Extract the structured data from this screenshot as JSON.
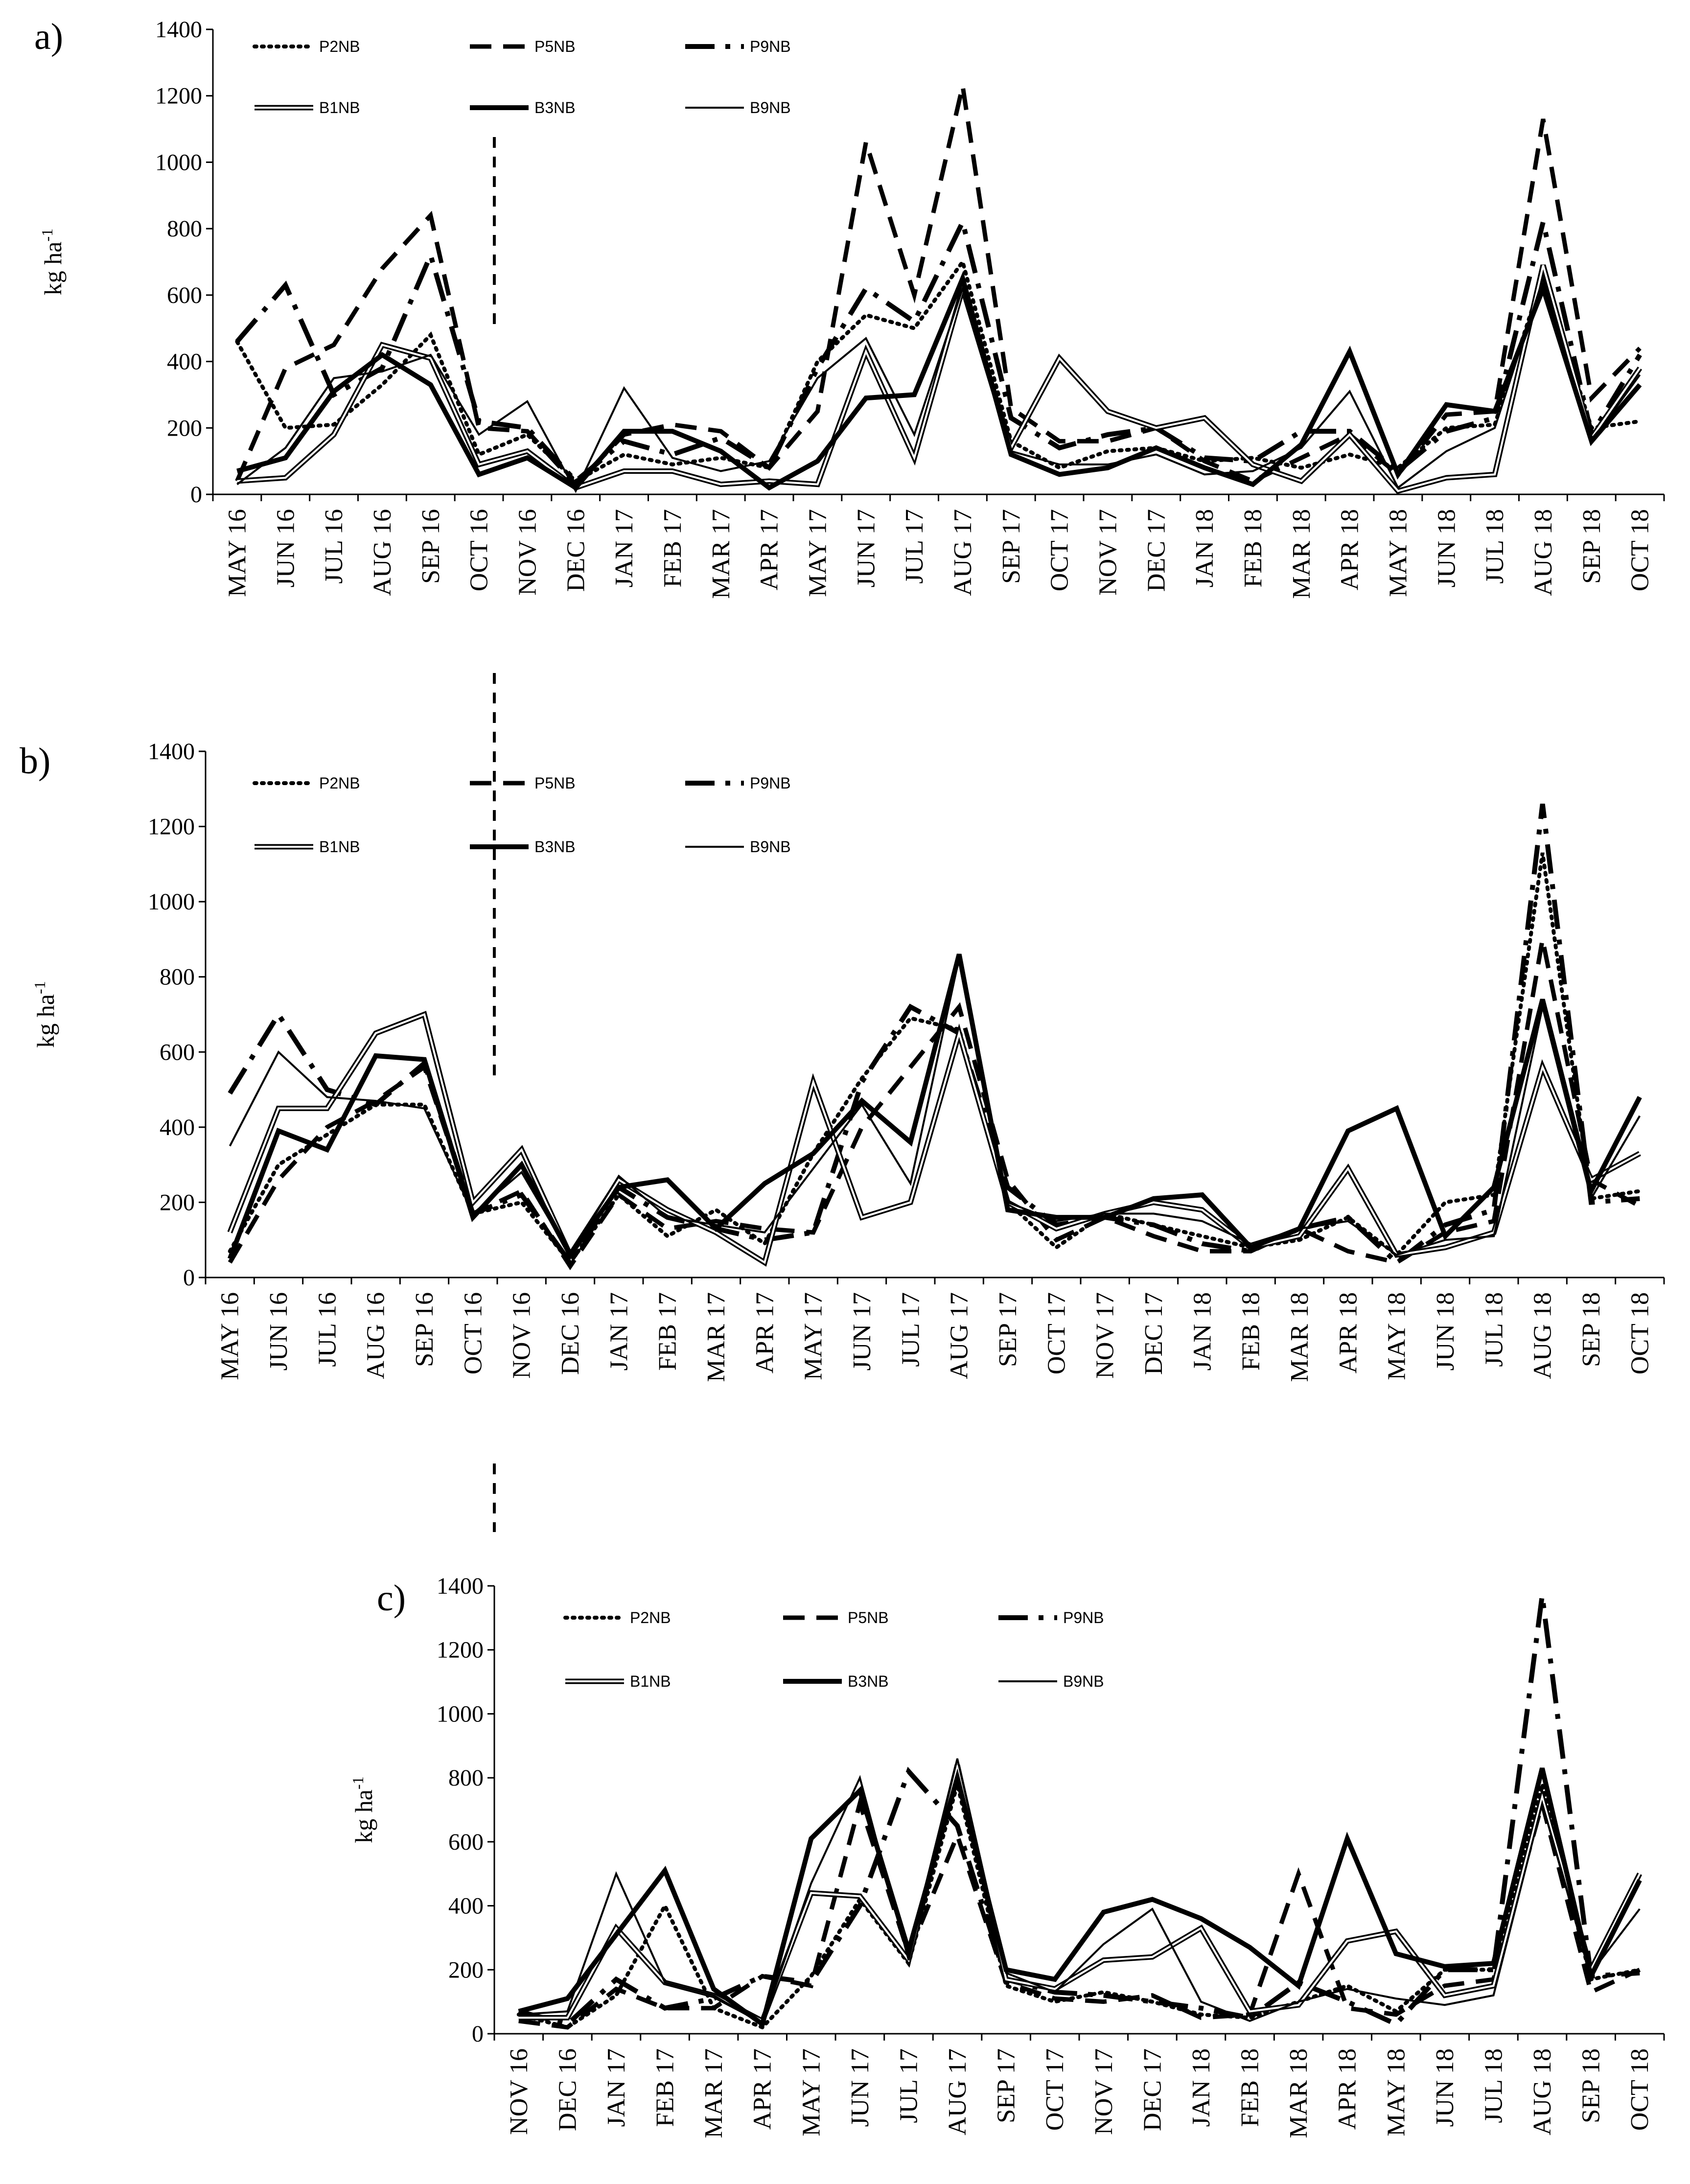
{
  "chart_data": [
    {
      "panel": "a)",
      "type": "line",
      "ylabel": "kg ha",
      "ylabel_sup": "-1",
      "ylim": [
        0,
        1400
      ],
      "yticks": [
        0,
        200,
        400,
        600,
        800,
        1000,
        1200,
        1400
      ],
      "categories": [
        "MAY 16",
        "JUN 16",
        "JUL 16",
        "AUG 16",
        "SEP 16",
        "OCT 16",
        "NOV 16",
        "DEC 16",
        "JAN 17",
        "FEB 17",
        "MAR 17",
        "APR 17",
        "MAY 17",
        "JUN 17",
        "JUL 17",
        "AUG 17",
        "SEP 17",
        "OCT 17",
        "NOV 17",
        "DEC 17",
        "JAN 18",
        "FEB 18",
        "MAR 18",
        "APR 18",
        "MAY 18",
        "JUN 18",
        "JUL 18",
        "AUG 18",
        "SEP 18",
        "OCT 18"
      ],
      "series": [
        {
          "name": "P2NB",
          "style": "dotted",
          "values": [
            460,
            200,
            210,
            330,
            480,
            120,
            180,
            40,
            120,
            90,
            110,
            80,
            400,
            540,
            500,
            700,
            160,
            80,
            130,
            140,
            100,
            110,
            80,
            120,
            80,
            200,
            210,
            660,
            200,
            220
          ]
        },
        {
          "name": "P5NB",
          "style": "dashed",
          "values": [
            40,
            380,
            450,
            680,
            840,
            200,
            190,
            30,
            180,
            210,
            190,
            80,
            250,
            1060,
            600,
            1230,
            260,
            160,
            160,
            200,
            100,
            40,
            110,
            180,
            60,
            240,
            250,
            1130,
            290,
            440
          ]
        },
        {
          "name": "P9NB",
          "style": "dashdot",
          "values": [
            460,
            630,
            300,
            380,
            720,
            220,
            200,
            40,
            160,
            120,
            170,
            80,
            380,
            620,
            520,
            820,
            230,
            140,
            180,
            200,
            110,
            100,
            190,
            190,
            70,
            190,
            230,
            820,
            180,
            420
          ]
        },
        {
          "name": "B1NB",
          "style": "double",
          "values": [
            40,
            50,
            180,
            450,
            410,
            90,
            130,
            20,
            70,
            70,
            30,
            40,
            30,
            430,
            110,
            620,
            140,
            410,
            250,
            200,
            230,
            90,
            40,
            180,
            10,
            50,
            60,
            690,
            170,
            380
          ]
        },
        {
          "name": "B3NB",
          "style": "thick",
          "values": [
            70,
            110,
            310,
            420,
            330,
            60,
            110,
            20,
            190,
            190,
            130,
            20,
            100,
            290,
            300,
            650,
            120,
            60,
            80,
            140,
            80,
            30,
            150,
            430,
            60,
            270,
            250,
            620,
            160,
            330
          ]
        },
        {
          "name": "B9NB",
          "style": "thin",
          "values": [
            30,
            140,
            350,
            370,
            420,
            180,
            280,
            10,
            320,
            110,
            70,
            100,
            350,
            470,
            180,
            620,
            130,
            90,
            90,
            120,
            60,
            70,
            140,
            310,
            20,
            130,
            200,
            650,
            160,
            360
          ]
        }
      ]
    },
    {
      "panel": "b)",
      "type": "line",
      "ylabel": "kg ha",
      "ylabel_sup": "-1",
      "ylim": [
        0,
        1400
      ],
      "yticks": [
        0,
        200,
        400,
        600,
        800,
        1000,
        1200,
        1400
      ],
      "categories": [
        "MAY 16",
        "JUN 16",
        "JUL 16",
        "AUG 16",
        "SEP 16",
        "OCT 16",
        "NOV 16",
        "DEC 16",
        "JAN 17",
        "FEB 17",
        "MAR 17",
        "APR 17",
        "MAY 17",
        "JUN 17",
        "JUL 17",
        "AUG 17",
        "SEP 17",
        "OCT 17",
        "NOV 17",
        "DEC 17",
        "JAN 18",
        "FEB 18",
        "MAR 18",
        "APR 18",
        "MAY 18",
        "JUN 18",
        "JUL 18",
        "AUG 18",
        "SEP 18",
        "OCT 18"
      ],
      "series": [
        {
          "name": "P2NB",
          "style": "dotted",
          "values": [
            70,
            300,
            380,
            460,
            460,
            170,
            200,
            40,
            220,
            110,
            180,
            90,
            330,
            530,
            690,
            660,
            200,
            80,
            170,
            140,
            110,
            80,
            100,
            160,
            60,
            200,
            220,
            1130,
            210,
            230
          ]
        },
        {
          "name": "P5NB",
          "style": "dashed",
          "values": [
            40,
            260,
            400,
            470,
            560,
            170,
            230,
            30,
            220,
            130,
            150,
            130,
            120,
            400,
            560,
            720,
            260,
            100,
            160,
            110,
            70,
            70,
            130,
            70,
            40,
            120,
            150,
            900,
            260,
            190
          ]
        },
        {
          "name": "P9NB",
          "style": "dashdot",
          "values": [
            490,
            700,
            500,
            460,
            570,
            170,
            220,
            40,
            240,
            160,
            130,
            100,
            120,
            520,
            720,
            650,
            240,
            140,
            160,
            140,
            90,
            70,
            130,
            160,
            40,
            140,
            180,
            1260,
            200,
            210
          ]
        },
        {
          "name": "B1NB",
          "style": "double",
          "values": [
            120,
            450,
            450,
            650,
            700,
            200,
            340,
            60,
            260,
            180,
            120,
            40,
            520,
            160,
            200,
            650,
            200,
            130,
            170,
            200,
            180,
            80,
            110,
            290,
            60,
            80,
            120,
            560,
            260,
            330
          ]
        },
        {
          "name": "B3NB",
          "style": "thick",
          "values": [
            50,
            390,
            340,
            590,
            580,
            160,
            300,
            60,
            240,
            260,
            130,
            250,
            330,
            470,
            360,
            860,
            180,
            160,
            160,
            210,
            220,
            80,
            130,
            390,
            450,
            110,
            240,
            740,
            230,
            480
          ]
        },
        {
          "name": "B9NB",
          "style": "thin",
          "values": [
            350,
            600,
            480,
            470,
            450,
            170,
            280,
            60,
            270,
            160,
            140,
            120,
            290,
            460,
            250,
            850,
            200,
            150,
            170,
            170,
            150,
            90,
            130,
            150,
            60,
            100,
            110,
            720,
            210,
            430
          ]
        }
      ]
    },
    {
      "panel": "c)",
      "type": "line",
      "ylabel": "kg ha",
      "ylabel_sup": "-1",
      "ylim": [
        0,
        1400
      ],
      "yticks": [
        0,
        200,
        400,
        600,
        800,
        1000,
        1200,
        1400
      ],
      "categories": [
        "NOV 16",
        "DEC 16",
        "JAN 17",
        "FEB 17",
        "MAR 17",
        "APR 17",
        "MAY 17",
        "JUN 17",
        "JUL 17",
        "AUG 17",
        "SEP 17",
        "OCT 17",
        "NOV 17",
        "DEC 17",
        "JAN 18",
        "FEB 18",
        "MAR 18",
        "APR 18",
        "MAY 18",
        "JUN 18",
        "JUL 18",
        "AUG 18",
        "SEP 18",
        "OCT 18"
      ],
      "series": [
        {
          "name": "P2NB",
          "style": "dotted",
          "values": [
            60,
            20,
            120,
            400,
            80,
            20,
            180,
            420,
            220,
            780,
            150,
            100,
            130,
            100,
            60,
            50,
            100,
            150,
            70,
            200,
            200,
            780,
            170,
            200
          ]
        },
        {
          "name": "P5NB",
          "style": "dashed",
          "values": [
            40,
            20,
            140,
            80,
            80,
            180,
            150,
            720,
            250,
            620,
            160,
            110,
            100,
            120,
            50,
            60,
            500,
            80,
            60,
            150,
            170,
            720,
            130,
            200
          ]
        },
        {
          "name": "P9NB",
          "style": "dashdot",
          "values": [
            70,
            30,
            170,
            80,
            110,
            180,
            160,
            400,
            820,
            650,
            170,
            130,
            120,
            100,
            80,
            50,
            160,
            100,
            30,
            200,
            200,
            1370,
            180,
            190
          ]
        },
        {
          "name": "B1NB",
          "style": "double",
          "values": [
            50,
            50,
            330,
            160,
            120,
            40,
            440,
            430,
            230,
            840,
            170,
            140,
            230,
            240,
            330,
            70,
            90,
            290,
            320,
            120,
            150,
            740,
            200,
            500
          ]
        },
        {
          "name": "B3NB",
          "style": "thick",
          "values": [
            70,
            110,
            310,
            510,
            140,
            30,
            610,
            760,
            260,
            800,
            200,
            170,
            380,
            420,
            360,
            270,
            150,
            610,
            250,
            210,
            220,
            830,
            180,
            480
          ]
        },
        {
          "name": "B9NB",
          "style": "thin",
          "values": [
            60,
            70,
            500,
            160,
            120,
            30,
            470,
            800,
            230,
            860,
            190,
            130,
            280,
            390,
            100,
            40,
            100,
            140,
            110,
            90,
            120,
            720,
            190,
            390
          ]
        }
      ]
    }
  ]
}
